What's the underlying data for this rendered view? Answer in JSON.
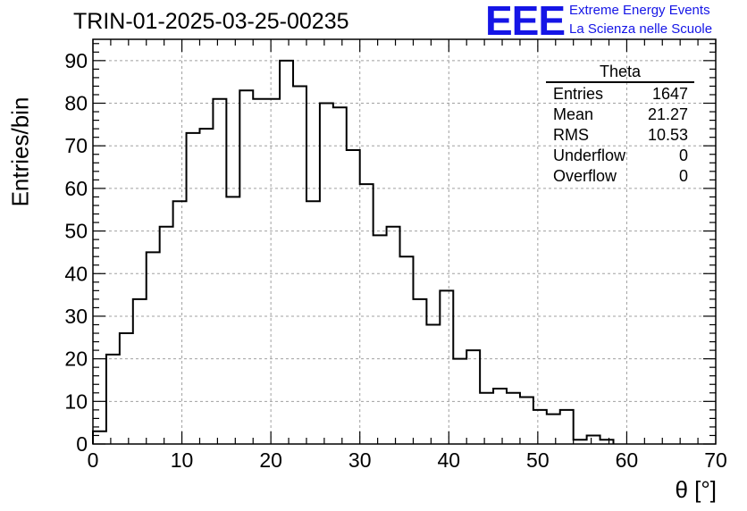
{
  "chart_data": {
    "type": "histogram",
    "title": "TRIN-01-2025-03-25-00235",
    "xlabel": "θ [°]",
    "ylabel": "Entries/bin",
    "xlim": [
      0,
      70
    ],
    "ylim": [
      0,
      95
    ],
    "grid": true,
    "x_ticks": [
      0,
      10,
      20,
      30,
      40,
      50,
      60,
      70
    ],
    "y_ticks": [
      0,
      10,
      20,
      30,
      40,
      50,
      60,
      70,
      80,
      90
    ],
    "bin_width": 1.5,
    "bin_edges_start": 0,
    "values": [
      3,
      21,
      26,
      34,
      45,
      51,
      57,
      73,
      74,
      81,
      58,
      83,
      81,
      81,
      90,
      84,
      57,
      80,
      79,
      69,
      61,
      49,
      51,
      44,
      34,
      28,
      36,
      20,
      22,
      12,
      13,
      12,
      11,
      8,
      7,
      8,
      1,
      2,
      1
    ],
    "line_color": "#000000"
  },
  "stats_box": {
    "title": "Theta",
    "rows": [
      {
        "label": "Entries",
        "value": "1647"
      },
      {
        "label": "Mean",
        "value": "21.27"
      },
      {
        "label": "RMS",
        "value": "10.53"
      },
      {
        "label": "Underflow",
        "value": "0"
      },
      {
        "label": "Overflow",
        "value": "0"
      }
    ]
  },
  "logo": {
    "mark": "EEE",
    "line1": "Extreme Energy Events",
    "line2": "La Scienza nelle Scuole",
    "color": "#1515e6"
  }
}
